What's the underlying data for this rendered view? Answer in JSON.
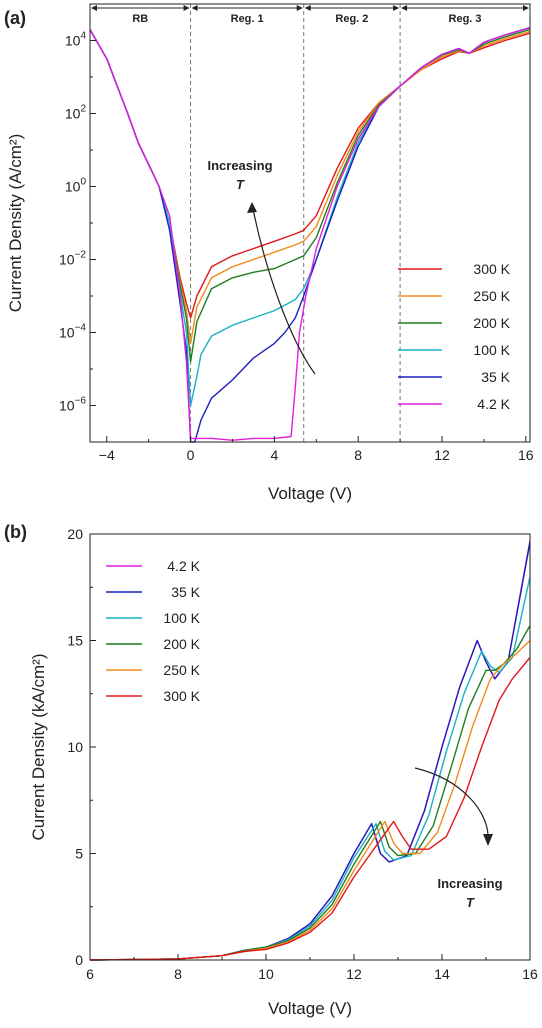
{
  "panel_labels": [
    "(a)",
    "(b)"
  ],
  "chart_data": [
    {
      "type": "line",
      "panel": "(a)",
      "xlabel": "Voltage (V)",
      "ylabel": "Current Density (A/cm²)",
      "xlim": [
        -4.8,
        16.2
      ],
      "ylim_log10": [
        -7,
        5
      ],
      "yscale": "log",
      "xticks": [
        "-4",
        "0",
        "4",
        "8",
        "12",
        "16"
      ],
      "yticks": [
        "10-6",
        "10-4",
        "10-2",
        "100",
        "102",
        "104"
      ],
      "regions": [
        {
          "label": "RB",
          "from": -4.8,
          "to": 0
        },
        {
          "label": "Reg. 1",
          "from": 0,
          "to": 5.4
        },
        {
          "label": "Reg. 2",
          "from": 5.4,
          "to": 10
        },
        {
          "label": "Reg. 3",
          "from": 10,
          "to": 16.2
        }
      ],
      "annotation": {
        "line1": "Increasing",
        "line2": "T"
      },
      "legend_position": "lower-right",
      "series": [
        {
          "name": "300 K",
          "color": "#e01818",
          "x": [
            -4.8,
            -4,
            -3,
            -2.5,
            -2,
            -1.5,
            -1,
            -0.5,
            -0.2,
            0,
            0.3,
            1,
            2,
            3,
            4,
            5,
            5.4,
            6,
            7,
            8,
            9,
            10,
            11,
            12,
            12.8,
            13.3,
            14,
            15,
            16.2
          ],
          "y": [
            4.3,
            3.5,
            2.0,
            1.2,
            0.6,
            0.0,
            -1.0,
            -2.5,
            -3.2,
            -3.6,
            -3.0,
            -2.2,
            -1.9,
            -1.7,
            -1.5,
            -1.3,
            -1.2,
            -0.8,
            0.5,
            1.6,
            2.3,
            2.75,
            3.2,
            3.5,
            3.7,
            3.65,
            3.8,
            4.0,
            4.2
          ]
        },
        {
          "name": "250 K",
          "color": "#f08a1c",
          "x": [
            -4.8,
            -4,
            -3,
            -2.5,
            -2,
            -1.5,
            -1,
            -0.5,
            -0.2,
            0,
            0.3,
            1,
            2,
            3,
            4,
            5,
            5.4,
            6,
            7,
            8,
            9,
            10,
            11,
            12,
            12.8,
            13.3,
            14,
            15,
            16.2
          ],
          "y": [
            4.3,
            3.5,
            2.0,
            1.2,
            0.6,
            0.0,
            -1.0,
            -2.6,
            -3.4,
            -4.3,
            -3.3,
            -2.5,
            -2.2,
            -2.0,
            -1.8,
            -1.6,
            -1.5,
            -1.1,
            0.3,
            1.5,
            2.3,
            2.75,
            3.2,
            3.55,
            3.72,
            3.65,
            3.85,
            4.05,
            4.25
          ]
        },
        {
          "name": "200 K",
          "color": "#1f7d1f",
          "x": [
            -4.8,
            -4,
            -3,
            -2.5,
            -2,
            -1.5,
            -1,
            -0.5,
            -0.2,
            0,
            0.3,
            1,
            2,
            3,
            4,
            5,
            5.4,
            6,
            7,
            8,
            9,
            10,
            11,
            12,
            12.8,
            13.3,
            14,
            15,
            16.2
          ],
          "y": [
            4.3,
            3.5,
            2.0,
            1.2,
            0.6,
            0.0,
            -1.0,
            -2.7,
            -3.6,
            -4.8,
            -3.7,
            -2.8,
            -2.5,
            -2.35,
            -2.25,
            -2.0,
            -1.9,
            -1.4,
            0.1,
            1.4,
            2.25,
            2.75,
            3.25,
            3.6,
            3.75,
            3.65,
            3.9,
            4.1,
            4.3
          ]
        },
        {
          "name": "100 K",
          "color": "#1ab0c8",
          "x": [
            -4.8,
            -4,
            -3,
            -2.5,
            -2,
            -1.5,
            -1,
            -0.5,
            -0.2,
            0,
            0.3,
            0.5,
            1,
            2,
            3,
            4,
            5,
            5.4,
            6,
            7,
            8,
            9,
            10,
            11,
            12,
            12.8,
            13.3,
            14,
            15,
            16.2
          ],
          "y": [
            4.3,
            3.5,
            2.0,
            1.2,
            0.6,
            0.0,
            -1.0,
            -2.9,
            -4.0,
            -6.0,
            -5.2,
            -4.6,
            -4.1,
            -3.8,
            -3.6,
            -3.4,
            -3.1,
            -2.8,
            -2.0,
            -0.3,
            1.2,
            2.2,
            2.75,
            3.25,
            3.62,
            3.78,
            3.65,
            3.95,
            4.15,
            4.35
          ]
        },
        {
          "name": "35 K",
          "color": "#1c20c0",
          "x": [
            -4.8,
            -4,
            -3,
            -2.5,
            -2,
            -1.5,
            -1,
            -0.5,
            -0.2,
            0,
            0.2,
            0.5,
            1,
            2,
            3,
            4,
            4.5,
            5,
            5.4,
            6,
            7,
            8,
            9,
            10,
            11,
            12,
            12.8,
            13.3,
            14,
            15,
            16.2
          ],
          "y": [
            4.3,
            3.5,
            2.0,
            1.2,
            0.6,
            0.0,
            -1.2,
            -3.2,
            -4.5,
            -7.0,
            -7.0,
            -6.4,
            -5.8,
            -5.3,
            -4.7,
            -4.3,
            -4.0,
            -3.6,
            -3.0,
            -2.0,
            -0.4,
            1.1,
            2.2,
            2.75,
            3.25,
            3.62,
            3.78,
            3.65,
            3.95,
            4.15,
            4.35
          ]
        },
        {
          "name": "4.2 K",
          "color": "#e020e0",
          "x": [
            -4.8,
            -4,
            -3,
            -2.5,
            -2,
            -1.5,
            -1,
            -0.5,
            -0.2,
            0,
            0.5,
            1,
            2,
            3,
            4,
            4.8,
            5,
            5.2,
            5.5,
            6,
            7,
            8,
            9,
            10,
            11,
            12,
            12.8,
            13.3,
            14,
            15,
            16.2
          ],
          "y": [
            4.3,
            3.5,
            2.0,
            1.2,
            0.6,
            0.0,
            -0.8,
            -3.0,
            -4.8,
            -6.9,
            -6.9,
            -6.9,
            -6.95,
            -6.9,
            -6.9,
            -6.85,
            -5.5,
            -4.0,
            -3.0,
            -1.7,
            0.0,
            1.3,
            2.2,
            2.75,
            3.25,
            3.62,
            3.78,
            3.65,
            3.95,
            4.15,
            4.35
          ]
        }
      ]
    },
    {
      "type": "line",
      "panel": "(b)",
      "xlabel": "Voltage (V)",
      "ylabel": "Current Density (kA/cm²)",
      "xlim": [
        6,
        16
      ],
      "ylim": [
        0,
        20
      ],
      "xticks": [
        "6",
        "8",
        "10",
        "12",
        "14",
        "16"
      ],
      "yticks": [
        "0",
        "5",
        "10",
        "15",
        "20"
      ],
      "annotation": {
        "line1": "Increasing",
        "line2": "T"
      },
      "legend_position": "top-left",
      "series": [
        {
          "name": "4.2 K",
          "color": "#e020e0",
          "x": [
            6,
            8,
            9,
            9.5,
            10,
            10.5,
            11,
            11.5,
            12,
            12.4,
            12.6,
            12.8,
            13.2,
            13.6,
            14,
            14.4,
            14.8,
            15.0,
            15.2,
            15.5,
            16
          ],
          "y": [
            0,
            0.05,
            0.2,
            0.45,
            0.6,
            1.0,
            1.7,
            3.0,
            5.0,
            6.4,
            5.0,
            4.6,
            4.9,
            7.0,
            10.0,
            12.8,
            15.0,
            14.0,
            13.2,
            14.0,
            19.7
          ]
        },
        {
          "name": "35 K",
          "color": "#1c20c0",
          "x": [
            6,
            8,
            9,
            9.5,
            10,
            10.5,
            11,
            11.5,
            12,
            12.4,
            12.6,
            12.8,
            13.2,
            13.6,
            14,
            14.4,
            14.8,
            15.0,
            15.2,
            15.5,
            16
          ],
          "y": [
            0,
            0.05,
            0.2,
            0.45,
            0.6,
            1.0,
            1.7,
            3.0,
            5.0,
            6.4,
            5.0,
            4.6,
            4.9,
            7.0,
            10.0,
            12.8,
            15.0,
            14.0,
            13.2,
            14.0,
            19.6
          ]
        },
        {
          "name": "100 K",
          "color": "#1ab0c8",
          "x": [
            6,
            8,
            9,
            9.5,
            10,
            10.5,
            11,
            11.5,
            12,
            12.5,
            12.7,
            12.9,
            13.3,
            13.7,
            14.1,
            14.5,
            14.9,
            15.1,
            15.3,
            15.6,
            16
          ],
          "y": [
            0,
            0.05,
            0.2,
            0.45,
            0.6,
            0.95,
            1.6,
            2.8,
            4.8,
            6.4,
            5.1,
            4.7,
            4.9,
            6.8,
            9.8,
            12.5,
            14.5,
            13.8,
            13.5,
            14.2,
            18.0
          ]
        },
        {
          "name": "200 K",
          "color": "#1f7d1f",
          "x": [
            6,
            8,
            9,
            9.5,
            10,
            10.5,
            11,
            11.5,
            12,
            12.6,
            12.8,
            13.0,
            13.4,
            13.8,
            14.2,
            14.6,
            15.0,
            15.2,
            15.4,
            15.7,
            16
          ],
          "y": [
            0,
            0.05,
            0.2,
            0.45,
            0.6,
            0.9,
            1.5,
            2.6,
            4.5,
            6.5,
            5.3,
            4.9,
            5.0,
            6.3,
            9.0,
            11.8,
            13.6,
            13.6,
            13.9,
            14.6,
            15.7
          ]
        },
        {
          "name": "250 K",
          "color": "#f08a1c",
          "x": [
            6,
            8,
            9,
            9.5,
            10,
            10.5,
            11,
            11.5,
            12,
            12.7,
            12.9,
            13.1,
            13.5,
            13.9,
            14.3,
            14.7,
            15.1,
            15.4,
            15.7,
            16
          ],
          "y": [
            0,
            0.05,
            0.2,
            0.4,
            0.55,
            0.85,
            1.4,
            2.4,
            4.2,
            6.5,
            5.5,
            5.0,
            5.0,
            6.0,
            8.3,
            11.0,
            13.2,
            13.9,
            14.4,
            15.0
          ]
        },
        {
          "name": "300 K",
          "color": "#e01818",
          "x": [
            6,
            8,
            9,
            9.5,
            10,
            10.5,
            11,
            11.5,
            12,
            12.9,
            13.1,
            13.3,
            13.7,
            14.1,
            14.5,
            14.9,
            15.3,
            15.6,
            16
          ],
          "y": [
            0,
            0.05,
            0.2,
            0.4,
            0.5,
            0.8,
            1.3,
            2.2,
            3.9,
            6.5,
            5.8,
            5.2,
            5.2,
            5.8,
            7.6,
            10.0,
            12.2,
            13.2,
            14.2
          ]
        }
      ]
    }
  ]
}
